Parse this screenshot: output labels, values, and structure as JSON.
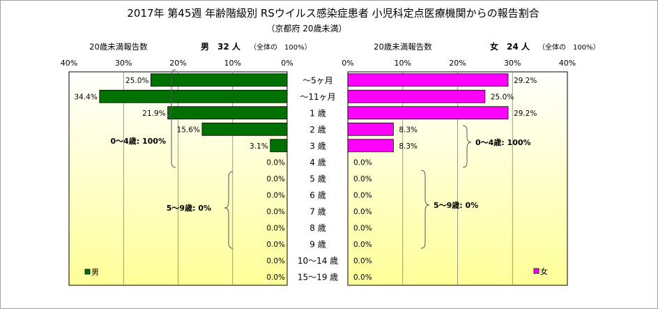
{
  "chart_data": [
    {
      "type": "bar",
      "orientation": "horizontal",
      "title": "2017年 第45週 年齢階級別 RSウイルス感染症患者 小児科定点医療機関からの報告割合",
      "subtitle": "（京都府 20歳未満）",
      "side_label": "20歳未満報告数",
      "series_heading": "男　32 人",
      "series_heading_note": "（全体の　100%）",
      "legend": "男",
      "direction": "right-to-left",
      "xlim": [
        0,
        40
      ],
      "xticks": [
        "40%",
        "30%",
        "20%",
        "10%",
        "0%"
      ],
      "categories": [
        "～5ヶ月",
        "～11ヶ月",
        "1 歳",
        "2 歳",
        "3 歳",
        "4 歳",
        "5 歳",
        "6 歳",
        "7 歳",
        "8 歳",
        "9 歳",
        "10～14 歳",
        "15～19 歳"
      ],
      "values": [
        25.0,
        34.4,
        21.9,
        15.6,
        3.1,
        0.0,
        0.0,
        0.0,
        0.0,
        0.0,
        0.0,
        0.0,
        0.0
      ],
      "value_labels": [
        "25.0%",
        "34.4%",
        "21.9%",
        "15.6%",
        "3.1%",
        "0.0%",
        "0.0%",
        "0.0%",
        "0.0%",
        "0.0%",
        "0.0%",
        "0.0%",
        "0.0%"
      ],
      "brace_labels": [
        "0～4歳: 100%",
        "5～9歳: 0%"
      ],
      "color": "#007000",
      "grid": true
    },
    {
      "type": "bar",
      "orientation": "horizontal",
      "side_label": "20歳未満報告数",
      "series_heading": "女　24 人",
      "series_heading_note": "（全体の　100%）",
      "legend": "女",
      "direction": "left-to-right",
      "xlim": [
        0,
        40
      ],
      "xticks": [
        "0%",
        "10%",
        "20%",
        "30%",
        "40%"
      ],
      "categories": [
        "～5ヶ月",
        "～11ヶ月",
        "1 歳",
        "2 歳",
        "3 歳",
        "4 歳",
        "5 歳",
        "6 歳",
        "7 歳",
        "8 歳",
        "9 歳",
        "10～14 歳",
        "15～19 歳"
      ],
      "values": [
        29.2,
        25.0,
        29.2,
        8.3,
        8.3,
        0.0,
        0.0,
        0.0,
        0.0,
        0.0,
        0.0,
        0.0,
        0.0
      ],
      "value_labels": [
        "29.2%",
        "25.0%",
        "29.2%",
        "8.3%",
        "8.3%",
        "0.0%",
        "0.0%",
        "0.0%",
        "0.0%",
        "0.0%",
        "0.0%",
        "0.0%",
        "0.0%"
      ],
      "brace_labels": [
        "0～4歳: 100%",
        "5～9歳: 0%"
      ],
      "color": "#ff00ff",
      "grid": true
    }
  ],
  "colors": {
    "frame_border": "#a0a0a0",
    "grid": "#808080",
    "bg_top": "#ffffff",
    "bg_bottom": "#ffff99"
  }
}
